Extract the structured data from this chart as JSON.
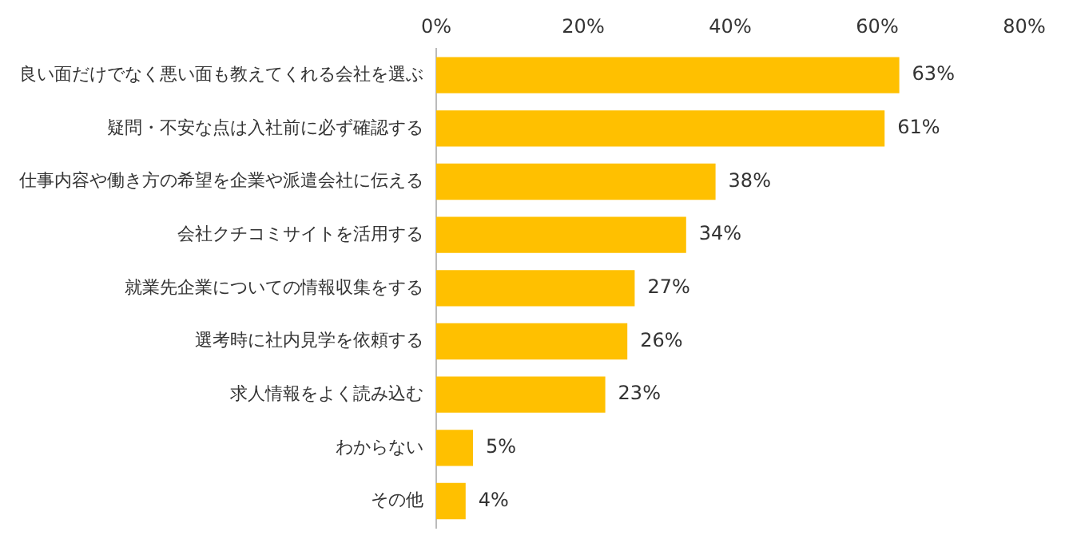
{
  "chart_data": {
    "type": "bar",
    "orientation": "horizontal",
    "categories": [
      "良い面だけでなく悪い面も教えてくれる会社を選ぶ",
      "疑問・不安な点は入社前に必ず確認する",
      "仕事内容や働き方の希望を企業や派遣会社に伝える",
      "会社クチコミサイトを活用する",
      "就業先企業についての情報収集をする",
      "選考時に社内見学を依頼する",
      "求人情報をよく読み込む",
      "わからない",
      "その他"
    ],
    "values": [
      63,
      61,
      38,
      34,
      27,
      26,
      23,
      5,
      4
    ],
    "value_labels": [
      "63%",
      "61%",
      "38%",
      "34%",
      "27%",
      "26%",
      "23%",
      "5%",
      "4%"
    ],
    "color": "#ffc000",
    "xlim": [
      0,
      80
    ],
    "xticks": [
      {
        "value": 0,
        "label": "0%"
      },
      {
        "value": 20,
        "label": "20%"
      },
      {
        "value": 40,
        "label": "40%"
      },
      {
        "value": 60,
        "label": "60%"
      },
      {
        "value": 80,
        "label": "80%"
      }
    ],
    "grid": false,
    "legend": false
  }
}
